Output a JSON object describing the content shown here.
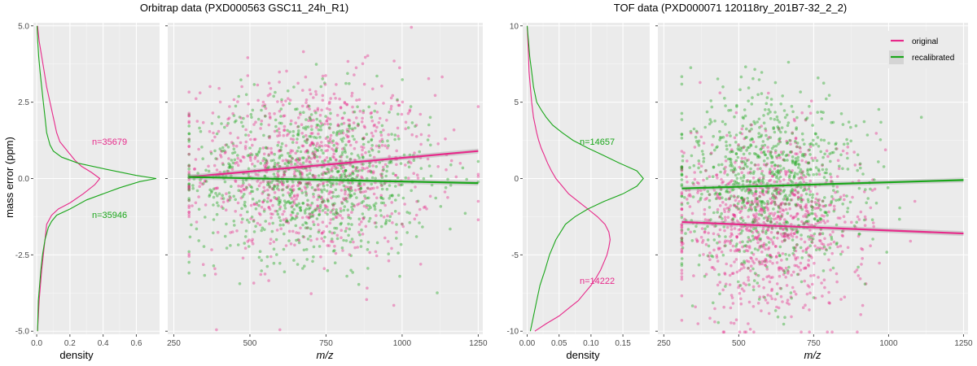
{
  "colors": {
    "original": "#E7298A",
    "recalibrated": "#1AA61A",
    "panel": "#EBEBEB",
    "grid_major": "#FFFFFF",
    "grid_minor": "#F5F5F5",
    "tick": "#4D4D4D"
  },
  "y_axis_label": "mass error (ppm)",
  "legend": {
    "entries": [
      {
        "key": "original",
        "label": "original"
      },
      {
        "key": "recalibrated",
        "label": "recalibrated"
      }
    ],
    "placement": "top-right of right scatter panel"
  },
  "chart_data": [
    {
      "type": "line",
      "title": "Orbitrap data (PXD000563 GSC11_24h_R1)",
      "subtitle": "density panel",
      "xlabel": "density",
      "xlim": [
        -0.02,
        0.74
      ],
      "ylim": [
        -5.1,
        5.1
      ],
      "xticks": [
        0.0,
        0.2,
        0.4,
        0.6
      ],
      "xtick_labels": [
        "0.0",
        "0.2",
        "0.4",
        "0.6"
      ],
      "yticks": [
        -5.0,
        -2.5,
        0.0,
        2.5,
        5.0
      ],
      "ytick_labels": [
        "-5.0",
        "-2.5",
        "0.0",
        "2.5",
        "5.0"
      ],
      "grid": true,
      "series": [
        {
          "name": "original",
          "n_label": "n=35679",
          "y": [
            -5.0,
            -4.0,
            -3.0,
            -2.5,
            -2.0,
            -1.5,
            -1.2,
            -1.0,
            -0.8,
            -0.5,
            -0.2,
            0.0,
            0.2,
            0.4,
            0.6,
            0.8,
            1.0,
            1.2,
            1.5,
            2.0,
            2.5,
            3.0,
            3.5,
            4.0,
            4.5,
            5.0
          ],
          "x": [
            0.005,
            0.015,
            0.03,
            0.04,
            0.05,
            0.06,
            0.09,
            0.13,
            0.2,
            0.28,
            0.35,
            0.38,
            0.33,
            0.27,
            0.23,
            0.2,
            0.17,
            0.14,
            0.12,
            0.1,
            0.08,
            0.06,
            0.045,
            0.03,
            0.015,
            0.005
          ]
        },
        {
          "name": "recalibrated",
          "n_label": "n=35946",
          "y": [
            -5.0,
            -4.0,
            -3.0,
            -2.5,
            -2.0,
            -1.6,
            -1.4,
            -1.2,
            -1.0,
            -0.7,
            -0.5,
            -0.3,
            -0.1,
            0.0,
            0.1,
            0.3,
            0.5,
            0.7,
            0.9,
            1.1,
            1.5,
            2.0,
            2.5,
            3.0,
            3.5,
            4.0,
            4.5,
            5.0
          ],
          "x": [
            0.005,
            0.01,
            0.025,
            0.035,
            0.05,
            0.07,
            0.09,
            0.12,
            0.2,
            0.3,
            0.4,
            0.5,
            0.62,
            0.72,
            0.6,
            0.42,
            0.25,
            0.15,
            0.1,
            0.08,
            0.06,
            0.05,
            0.04,
            0.03,
            0.02,
            0.012,
            0.006,
            0.002
          ]
        }
      ]
    },
    {
      "type": "scatter",
      "title": "Orbitrap data (PXD000563 GSC11_24h_R1)",
      "subtitle": "scatter panel",
      "xlabel": "m/z",
      "xlim": [
        230,
        1265
      ],
      "ylim": [
        -5.1,
        5.1
      ],
      "xticks": [
        250,
        500,
        750,
        1000,
        1250
      ],
      "xtick_labels": [
        "250",
        "500",
        "750",
        "1000",
        "1250"
      ],
      "yticks": [
        -5.0,
        -2.5,
        0.0,
        2.5,
        5.0
      ],
      "x_range_points": [
        300,
        1250
      ],
      "grid": true,
      "point_clouds": [
        {
          "name": "original",
          "n": 900,
          "center_y": 0.35,
          "sd_y": 1.5,
          "center_x": 700,
          "sd_x": 200
        },
        {
          "name": "recalibrated",
          "n": 900,
          "center_y": 0.0,
          "sd_y": 1.3,
          "center_x": 700,
          "sd_x": 200
        }
      ],
      "trend_lines": [
        {
          "name": "original",
          "x": [
            300,
            1250
          ],
          "y": [
            0.05,
            0.9
          ]
        },
        {
          "name": "recalibrated",
          "x": [
            300,
            1250
          ],
          "y": [
            0.05,
            -0.15
          ]
        }
      ]
    },
    {
      "type": "line",
      "title": "TOF data (PXD000071 120118ry_201B7-32_2_2)",
      "subtitle": "density panel",
      "xlabel": "density",
      "xlim": [
        -0.007,
        0.192
      ],
      "ylim": [
        -10.2,
        10.2
      ],
      "xticks": [
        0.0,
        0.05,
        0.1,
        0.15
      ],
      "xtick_labels": [
        "0.00",
        "0.05",
        "0.10",
        "0.15"
      ],
      "yticks": [
        -10,
        -5,
        0,
        5,
        10
      ],
      "ytick_labels": [
        "-10",
        "-5",
        "0",
        "5",
        "10"
      ],
      "grid": true,
      "series": [
        {
          "name": "original",
          "n_label": "n=14222",
          "y": [
            -10,
            -9.5,
            -9,
            -8.5,
            -8,
            -7.5,
            -7,
            -6.5,
            -6,
            -5.5,
            -5,
            -4.5,
            -4,
            -3.5,
            -3,
            -2.5,
            -2,
            -1.5,
            -1,
            -0.5,
            0,
            0.5,
            1,
            1.5,
            2,
            2.5,
            3,
            4,
            5,
            6,
            7,
            8,
            9,
            10
          ],
          "x": [
            0.012,
            0.03,
            0.05,
            0.065,
            0.08,
            0.09,
            0.1,
            0.108,
            0.115,
            0.12,
            0.125,
            0.128,
            0.13,
            0.128,
            0.122,
            0.11,
            0.095,
            0.08,
            0.065,
            0.055,
            0.045,
            0.038,
            0.032,
            0.027,
            0.022,
            0.018,
            0.015,
            0.01,
            0.007,
            0.005,
            0.003,
            0.002,
            0.001,
            0.0
          ]
        },
        {
          "name": "recalibrated",
          "n_label": "n=14657",
          "y": [
            -10,
            -9,
            -8,
            -7,
            -6,
            -5,
            -4,
            -3,
            -2.5,
            -2,
            -1.5,
            -1,
            -0.5,
            0,
            0.5,
            1,
            1.5,
            2,
            2.5,
            3,
            3.5,
            4,
            4.5,
            5,
            6,
            7,
            8,
            9,
            10
          ],
          "x": [
            0.005,
            0.01,
            0.015,
            0.02,
            0.028,
            0.035,
            0.045,
            0.06,
            0.075,
            0.095,
            0.12,
            0.15,
            0.172,
            0.182,
            0.172,
            0.145,
            0.12,
            0.095,
            0.072,
            0.055,
            0.04,
            0.03,
            0.022,
            0.015,
            0.01,
            0.007,
            0.004,
            0.002,
            0.0
          ]
        }
      ]
    },
    {
      "type": "scatter",
      "title": "TOF data (PXD000071 120118ry_201B7-32_2_2)",
      "subtitle": "scatter panel",
      "xlabel": "m/z",
      "xlim": [
        230,
        1265
      ],
      "ylim": [
        -10.2,
        10.2
      ],
      "xticks": [
        250,
        500,
        750,
        1000,
        1250
      ],
      "xtick_labels": [
        "250",
        "500",
        "750",
        "1000",
        "1250"
      ],
      "yticks": [
        -10,
        -5,
        0,
        5,
        10
      ],
      "x_range_points": [
        310,
        1250
      ],
      "grid": true,
      "point_clouds": [
        {
          "name": "original",
          "n": 900,
          "center_y": -3.0,
          "sd_y": 3.0,
          "center_x": 600,
          "sd_x": 150
        },
        {
          "name": "recalibrated",
          "n": 900,
          "center_y": -0.3,
          "sd_y": 3.0,
          "center_x": 600,
          "sd_x": 150
        }
      ],
      "trend_lines": [
        {
          "name": "original",
          "x": [
            310,
            1250
          ],
          "y": [
            -2.85,
            -3.6
          ]
        },
        {
          "name": "recalibrated",
          "x": [
            310,
            1250
          ],
          "y": [
            -0.65,
            -0.1
          ]
        }
      ]
    }
  ]
}
